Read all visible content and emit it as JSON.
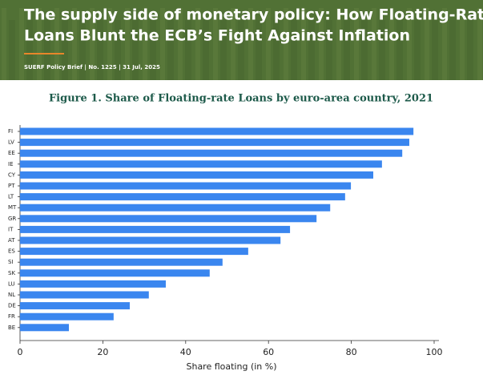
{
  "header": {
    "title_lines": [
      "The supply side of monetary policy: How Floating-Rate",
      "Loans Blunt the ECB’s Fight Against Inflation"
    ],
    "subtitle": "SUERF Policy Brief | No. 1225 | 31 Jul, 2025"
  },
  "chart_data": {
    "type": "bar",
    "orientation": "horizontal",
    "title": "Figure 1. Share of Floating-rate Loans by euro-area country, 2021",
    "x_label": "Share floating (in %)",
    "categories": [
      "FI",
      "LV",
      "EE",
      "IE",
      "CY",
      "PT",
      "LT",
      "MT",
      "GR",
      "IT",
      "AT",
      "ES",
      "SI",
      "SK",
      "LU",
      "NL",
      "DE",
      "FR",
      "BE"
    ],
    "values": [
      95.0,
      94.0,
      92.3,
      87.4,
      85.3,
      79.9,
      78.5,
      74.9,
      71.6,
      65.2,
      62.9,
      55.1,
      48.9,
      45.8,
      35.2,
      31.1,
      26.5,
      22.6,
      11.8
    ],
    "color": "#3a86ef",
    "xlim": [
      0,
      100
    ],
    "xticks": [
      0,
      20,
      40,
      60,
      80,
      100
    ],
    "grid": false
  }
}
